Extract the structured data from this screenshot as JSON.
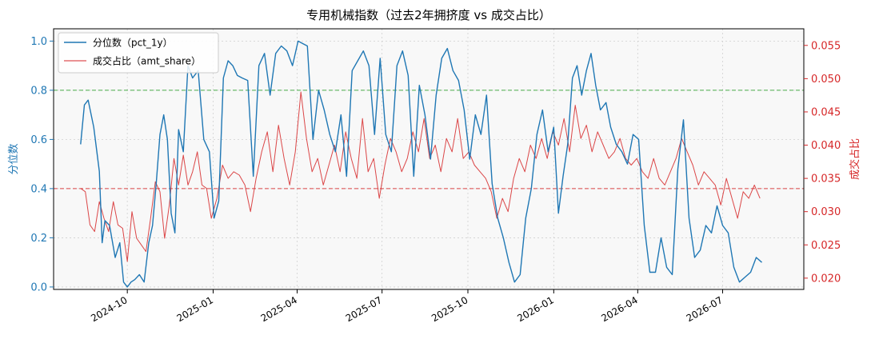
{
  "chart_data": {
    "type": "line",
    "title": "专用机械指数（过去2年拥挤度 vs 成交占比）",
    "x_tick_labels": [
      "2024-10",
      "2025-01",
      "2025-04",
      "2025-07",
      "2025-10",
      "2026-01",
      "2026-04",
      "2026-07"
    ],
    "x_ticks": [
      "2024-10-01",
      "2025-01-01",
      "2025-04-01",
      "2025-07-01",
      "2025-10-01",
      "2026-01-01",
      "2026-04-01",
      "2026-07-01"
    ],
    "xlim": [
      "2024-07-14",
      "2026-09-26"
    ],
    "grid": true,
    "legend_position": "top-left",
    "y_left": {
      "label": "分位数",
      "lim": [
        -0.01,
        1.05
      ],
      "ticks": [
        0.0,
        0.2,
        0.4,
        0.6,
        0.8,
        1.0
      ],
      "tick_labels": [
        "0.0",
        "0.2",
        "0.4",
        "0.6",
        "0.8",
        "1.0"
      ],
      "color": "#1f77b4"
    },
    "y_right": {
      "label": "成交占比",
      "lim": [
        0.0183,
        0.0575
      ],
      "ticks": [
        0.02,
        0.025,
        0.03,
        0.035,
        0.04,
        0.045,
        0.05,
        0.055
      ],
      "tick_labels": [
        "0.020",
        "0.025",
        "0.030",
        "0.035",
        "0.040",
        "0.045",
        "0.050",
        "0.055"
      ],
      "color": "#d62728"
    },
    "reference_lines": [
      {
        "axis": "left",
        "value": 0.8,
        "color": "#2ca02c",
        "style": "dashed"
      },
      {
        "axis": "left",
        "value": 0.4,
        "color": "#d62728",
        "style": "dashed"
      }
    ],
    "series": [
      {
        "name": "分位数（pct_1y）",
        "axis": "left",
        "color": "#1f77b4",
        "x": [
          "2024-08-12",
          "2024-08-16",
          "2024-08-20",
          "2024-08-26",
          "2024-09-01",
          "2024-09-04",
          "2024-09-07",
          "2024-09-12",
          "2024-09-18",
          "2024-09-23",
          "2024-09-27",
          "2024-10-01",
          "2024-10-05",
          "2024-10-09",
          "2024-10-14",
          "2024-10-19",
          "2024-10-24",
          "2024-10-28",
          "2024-11-01",
          "2024-11-05",
          "2024-11-09",
          "2024-11-13",
          "2024-11-17",
          "2024-11-21",
          "2024-11-25",
          "2024-11-30",
          "2024-12-05",
          "2024-12-10",
          "2024-12-16",
          "2024-12-22",
          "2024-12-28",
          "2025-01-02",
          "2025-01-07",
          "2025-01-12",
          "2025-01-17",
          "2025-01-22",
          "2025-01-27",
          "2025-02-01",
          "2025-02-07",
          "2025-02-13",
          "2025-02-19",
          "2025-02-25",
          "2025-03-03",
          "2025-03-09",
          "2025-03-15",
          "2025-03-21",
          "2025-03-27",
          "2025-04-02",
          "2025-04-07",
          "2025-04-12",
          "2025-04-18",
          "2025-04-24",
          "2025-04-30",
          "2025-05-06",
          "2025-05-12",
          "2025-05-18",
          "2025-05-24",
          "2025-05-30",
          "2025-06-05",
          "2025-06-11",
          "2025-06-17",
          "2025-06-23",
          "2025-06-29",
          "2025-07-05",
          "2025-07-11",
          "2025-07-17",
          "2025-07-23",
          "2025-07-29",
          "2025-08-04",
          "2025-08-10",
          "2025-08-16",
          "2025-08-22",
          "2025-08-28",
          "2025-09-03",
          "2025-09-09",
          "2025-09-15",
          "2025-09-21",
          "2025-09-27",
          "2025-10-03",
          "2025-10-09",
          "2025-10-15",
          "2025-10-21",
          "2025-10-27",
          "2025-11-02",
          "2025-11-08",
          "2025-11-14",
          "2025-11-20",
          "2025-11-26",
          "2025-12-02",
          "2025-12-08",
          "2025-12-14",
          "2025-12-20",
          "2025-12-26",
          "2026-01-01",
          "2026-01-06",
          "2026-01-11",
          "2026-01-16",
          "2026-01-21",
          "2026-01-26",
          "2026-01-31",
          "2026-02-05",
          "2026-02-10",
          "2026-02-15",
          "2026-02-20",
          "2026-02-26",
          "2026-03-03",
          "2026-03-09",
          "2026-03-15",
          "2026-03-21",
          "2026-03-27",
          "2026-04-02",
          "2026-04-08",
          "2026-04-14",
          "2026-04-20",
          "2026-04-26",
          "2026-05-02",
          "2026-05-08",
          "2026-05-14",
          "2026-05-20",
          "2026-05-26",
          "2026-06-01",
          "2026-06-07",
          "2026-06-13",
          "2026-06-19",
          "2026-06-25",
          "2026-07-01",
          "2026-07-07",
          "2026-07-13",
          "2026-07-19",
          "2026-07-25",
          "2026-07-31",
          "2026-08-06",
          "2026-08-12"
        ],
        "values": [
          0.58,
          0.74,
          0.76,
          0.65,
          0.47,
          0.18,
          0.27,
          0.25,
          0.12,
          0.18,
          0.02,
          0.0,
          0.02,
          0.03,
          0.05,
          0.02,
          0.18,
          0.25,
          0.42,
          0.62,
          0.7,
          0.6,
          0.3,
          0.22,
          0.64,
          0.55,
          0.9,
          0.85,
          0.88,
          0.6,
          0.55,
          0.28,
          0.35,
          0.85,
          0.92,
          0.9,
          0.86,
          0.85,
          0.84,
          0.45,
          0.9,
          0.95,
          0.78,
          0.95,
          0.98,
          0.96,
          0.9,
          1.0,
          0.99,
          0.98,
          0.6,
          0.8,
          0.72,
          0.62,
          0.55,
          0.7,
          0.45,
          0.88,
          0.92,
          0.96,
          0.9,
          0.62,
          0.93,
          0.62,
          0.55,
          0.9,
          0.96,
          0.86,
          0.45,
          0.82,
          0.7,
          0.52,
          0.78,
          0.93,
          0.97,
          0.88,
          0.84,
          0.72,
          0.52,
          0.7,
          0.62,
          0.78,
          0.42,
          0.28,
          0.2,
          0.1,
          0.02,
          0.05,
          0.28,
          0.4,
          0.62,
          0.72,
          0.55,
          0.65,
          0.3,
          0.45,
          0.58,
          0.85,
          0.9,
          0.78,
          0.88,
          0.95,
          0.82,
          0.72,
          0.75,
          0.65,
          0.58,
          0.55,
          0.5,
          0.62,
          0.6,
          0.25,
          0.06,
          0.06,
          0.2,
          0.08,
          0.05,
          0.48,
          0.68,
          0.28,
          0.12,
          0.15,
          0.25,
          0.22,
          0.33,
          0.25,
          0.22,
          0.08,
          0.02,
          0.04,
          0.06,
          0.12,
          0.1
        ]
      },
      {
        "name": "成交占比（amt_share）",
        "axis": "right",
        "color": "#d62728",
        "x": [
          "2024-08-12",
          "2024-08-17",
          "2024-08-22",
          "2024-08-27",
          "2024-09-01",
          "2024-09-06",
          "2024-09-11",
          "2024-09-16",
          "2024-09-21",
          "2024-09-26",
          "2024-10-01",
          "2024-10-06",
          "2024-10-11",
          "2024-10-16",
          "2024-10-21",
          "2024-10-26",
          "2024-10-31",
          "2024-11-05",
          "2024-11-10",
          "2024-11-15",
          "2024-11-20",
          "2024-11-25",
          "2024-11-30",
          "2024-12-05",
          "2024-12-10",
          "2024-12-15",
          "2024-12-20",
          "2024-12-25",
          "2024-12-30",
          "2025-01-05",
          "2025-01-11",
          "2025-01-17",
          "2025-01-23",
          "2025-01-29",
          "2025-02-04",
          "2025-02-10",
          "2025-02-16",
          "2025-02-22",
          "2025-02-28",
          "2025-03-06",
          "2025-03-12",
          "2025-03-18",
          "2025-03-24",
          "2025-03-30",
          "2025-04-05",
          "2025-04-11",
          "2025-04-17",
          "2025-04-23",
          "2025-04-29",
          "2025-05-05",
          "2025-05-11",
          "2025-05-17",
          "2025-05-23",
          "2025-05-29",
          "2025-06-04",
          "2025-06-10",
          "2025-06-16",
          "2025-06-22",
          "2025-06-28",
          "2025-07-04",
          "2025-07-10",
          "2025-07-16",
          "2025-07-22",
          "2025-07-28",
          "2025-08-03",
          "2025-08-09",
          "2025-08-15",
          "2025-08-21",
          "2025-08-27",
          "2025-09-02",
          "2025-09-08",
          "2025-09-14",
          "2025-09-20",
          "2025-09-26",
          "2025-10-02",
          "2025-10-08",
          "2025-10-14",
          "2025-10-20",
          "2025-10-26",
          "2025-11-01",
          "2025-11-07",
          "2025-11-13",
          "2025-11-19",
          "2025-11-25",
          "2025-12-01",
          "2025-12-07",
          "2025-12-13",
          "2025-12-19",
          "2025-12-25",
          "2025-12-31",
          "2026-01-06",
          "2026-01-12",
          "2026-01-18",
          "2026-01-24",
          "2026-01-30",
          "2026-02-05",
          "2026-02-11",
          "2026-02-17",
          "2026-02-23",
          "2026-03-01",
          "2026-03-07",
          "2026-03-13",
          "2026-03-19",
          "2026-03-25",
          "2026-03-31",
          "2026-04-06",
          "2026-04-12",
          "2026-04-18",
          "2026-04-24",
          "2026-04-30",
          "2026-05-06",
          "2026-05-12",
          "2026-05-18",
          "2026-05-24",
          "2026-05-30",
          "2026-06-05",
          "2026-06-11",
          "2026-06-17",
          "2026-06-23",
          "2026-06-29",
          "2026-07-05",
          "2026-07-11",
          "2026-07-17",
          "2026-07-23",
          "2026-07-29",
          "2026-08-04",
          "2026-08-10"
        ],
        "values": [
          0.0335,
          0.033,
          0.028,
          0.027,
          0.0315,
          0.029,
          0.027,
          0.0315,
          0.028,
          0.0275,
          0.0225,
          0.03,
          0.026,
          0.025,
          0.024,
          0.029,
          0.0345,
          0.033,
          0.026,
          0.031,
          0.038,
          0.034,
          0.0385,
          0.034,
          0.036,
          0.039,
          0.034,
          0.0335,
          0.029,
          0.032,
          0.037,
          0.035,
          0.036,
          0.0355,
          0.034,
          0.03,
          0.035,
          0.039,
          0.042,
          0.036,
          0.043,
          0.038,
          0.034,
          0.039,
          0.048,
          0.041,
          0.036,
          0.038,
          0.034,
          0.037,
          0.04,
          0.036,
          0.042,
          0.038,
          0.035,
          0.044,
          0.036,
          0.038,
          0.032,
          0.037,
          0.041,
          0.039,
          0.036,
          0.038,
          0.042,
          0.039,
          0.044,
          0.038,
          0.04,
          0.036,
          0.041,
          0.039,
          0.044,
          0.038,
          0.039,
          0.037,
          0.036,
          0.035,
          0.033,
          0.029,
          0.032,
          0.03,
          0.035,
          0.038,
          0.036,
          0.04,
          0.038,
          0.041,
          0.038,
          0.042,
          0.04,
          0.044,
          0.039,
          0.046,
          0.041,
          0.043,
          0.039,
          0.042,
          0.04,
          0.038,
          0.039,
          0.041,
          0.038,
          0.037,
          0.038,
          0.036,
          0.035,
          0.038,
          0.035,
          0.034,
          0.036,
          0.038,
          0.041,
          0.039,
          0.037,
          0.034,
          0.036,
          0.035,
          0.034,
          0.031,
          0.035,
          0.032,
          0.029,
          0.033,
          0.032,
          0.034,
          0.032
        ]
      }
    ]
  }
}
